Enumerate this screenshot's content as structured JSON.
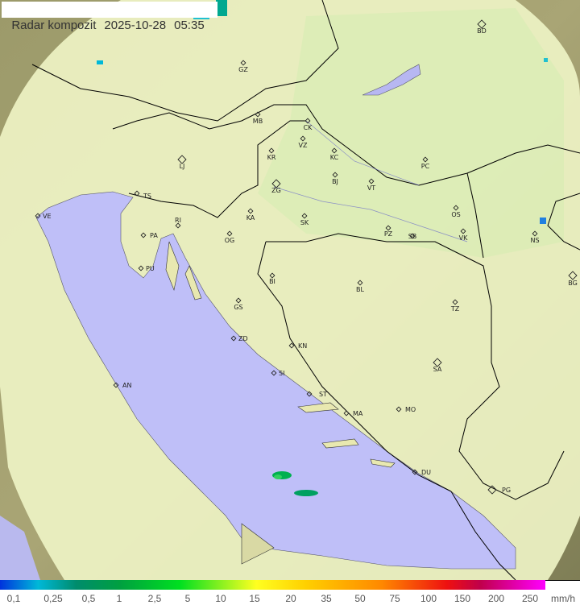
{
  "header": {
    "title": "Radar kompozit",
    "date": "2025-10-28",
    "time": "05:35"
  },
  "cities": [
    "GZ",
    "BD",
    "MB",
    "CK",
    "VZ",
    "KR",
    "KC",
    "LJ",
    "PC",
    "BJ",
    "VT",
    "ZG",
    "TS",
    "VE",
    "RI",
    "KA",
    "SK",
    "OS",
    "NS",
    "PA",
    "OG",
    "PZ",
    "SB",
    "VK",
    "PU",
    "BI",
    "BL",
    "BG",
    "GS",
    "TZ",
    "ZD",
    "KN",
    "SA",
    "SI",
    "AN",
    "ST",
    "MA",
    "MO",
    "DU",
    "PG"
  ],
  "legend": {
    "values": [
      "0,1",
      "0,25",
      "0,5",
      "1",
      "2,5",
      "5",
      "10",
      "15",
      "20",
      "35",
      "50",
      "75",
      "100",
      "150",
      "200",
      "250"
    ],
    "unit": "mm/h"
  },
  "colors": {
    "sea": "#bfbff8",
    "land": "#e8e8b0",
    "coverage": "#f0f5c8",
    "outside": "#8a8a60"
  }
}
